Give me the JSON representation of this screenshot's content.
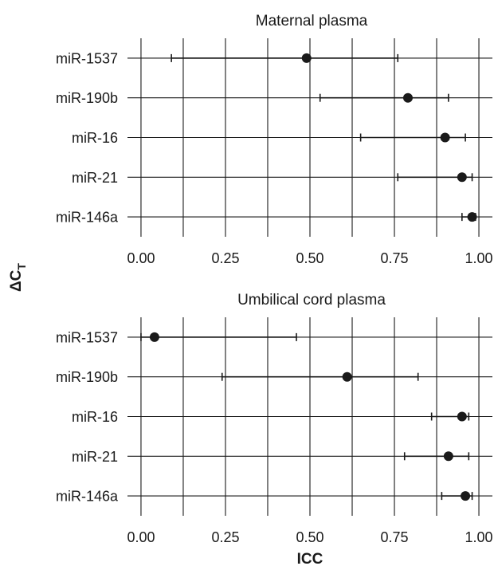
{
  "figure": {
    "ylabel": "ΔC",
    "ylabel_sub": "T",
    "xlabel": "ICC"
  },
  "chart_data": [
    {
      "type": "forest",
      "title": "Maternal plasma",
      "categories": [
        "miR-1537",
        "miR-190b",
        "miR-16",
        "miR-21",
        "miR-146a"
      ],
      "estimate": [
        0.49,
        0.79,
        0.9,
        0.95,
        0.98
      ],
      "ci_low": [
        0.09,
        0.53,
        0.65,
        0.76,
        0.95
      ],
      "ci_high": [
        0.76,
        0.91,
        0.96,
        0.98,
        0.99
      ],
      "xlim": [
        -0.04,
        1.04
      ],
      "xticks": [
        "0.00",
        "0.25",
        "0.50",
        "0.75",
        "1.00"
      ],
      "xlabel": "",
      "grid": true
    },
    {
      "type": "forest",
      "title": "Umbilical cord plasma",
      "categories": [
        "miR-1537",
        "miR-190b",
        "miR-16",
        "miR-21",
        "miR-146a"
      ],
      "estimate": [
        0.04,
        0.61,
        0.95,
        0.91,
        0.96
      ],
      "ci_low": [
        0.0,
        0.24,
        0.86,
        0.78,
        0.89
      ],
      "ci_high": [
        0.46,
        0.82,
        0.97,
        0.97,
        0.98
      ],
      "xlim": [
        -0.04,
        1.04
      ],
      "xticks": [
        "0.00",
        "0.25",
        "0.50",
        "0.75",
        "1.00"
      ],
      "xlabel": "ICC",
      "grid": true
    }
  ]
}
